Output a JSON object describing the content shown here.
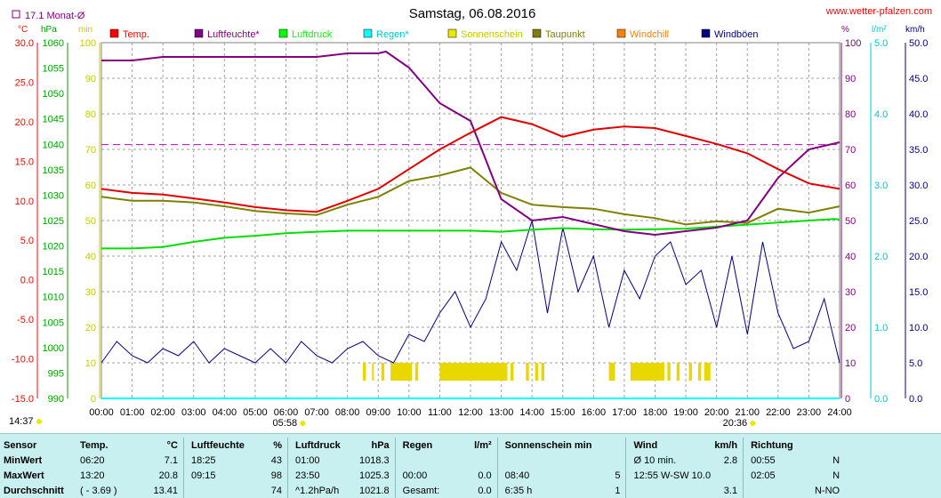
{
  "header": {
    "title": "Samstag, 06.08.2016",
    "site": "www.wetter-pfalzen.com",
    "monat_label": "17.1 Monat-Ø"
  },
  "axes": {
    "temp": {
      "unit": "°C",
      "ticks": [
        "30.0",
        "25.0",
        "20.0",
        "15.0",
        "10.0",
        "5.0",
        "0.0",
        "-5.0",
        "-10.0",
        "-15.0"
      ],
      "color": "#ff0000"
    },
    "pressure": {
      "unit": "hPa",
      "ticks": [
        "1060",
        "1055",
        "1050",
        "1045",
        "1040",
        "1035",
        "1030",
        "1025",
        "1020",
        "1015",
        "1010",
        "1005",
        "1000",
        "995",
        "990"
      ],
      "color": "#00a000"
    },
    "sun": {
      "unit": "min",
      "ticks": [
        "100",
        "90",
        "80",
        "70",
        "60",
        "50",
        "40",
        "30",
        "20",
        "10",
        "0"
      ],
      "color": "#c8c800"
    },
    "humidity": {
      "unit": "%",
      "ticks": [
        "100",
        "90",
        "80",
        "70",
        "60",
        "50",
        "40",
        "30",
        "20",
        "10",
        "0"
      ],
      "color": "#800080"
    },
    "rain": {
      "unit": "l/m²",
      "ticks": [
        "5.0",
        "4.0",
        "3.0",
        "2.0",
        "1.0",
        "0.0"
      ],
      "color": "#00c8c8"
    },
    "wind": {
      "unit": "km/h",
      "ticks": [
        "50.0",
        "45.0",
        "40.0",
        "35.0",
        "30.0",
        "25.0",
        "20.0",
        "15.0",
        "10.0",
        "5.0",
        "0.0"
      ],
      "color": "#000080"
    },
    "x_ticks": [
      "00:00",
      "01:00",
      "02:00",
      "03:00",
      "04:00",
      "05:00",
      "06:00",
      "07:00",
      "08:00",
      "09:00",
      "10:00",
      "11:00",
      "12:00",
      "13:00",
      "14:00",
      "15:00",
      "16:00",
      "17:00",
      "18:00",
      "19:00",
      "20:00",
      "21:00",
      "22:00",
      "23:00",
      "24:00"
    ],
    "sunrise": "05:58",
    "sunset": "20:36",
    "current_time": "14:37"
  },
  "legend": [
    {
      "label": "Temp.",
      "color": "#ff0000"
    },
    {
      "label": "Luftfeuchte*",
      "color": "#800080"
    },
    {
      "label": "Luftdruck",
      "color": "#00ff00"
    },
    {
      "label": "Regen*",
      "color": "#00ffff"
    },
    {
      "label": "Sonnenschein",
      "color": "#e8e800"
    },
    {
      "label": "Taupunkt",
      "color": "#808000"
    },
    {
      "label": "Windchill",
      "color": "#ff8000"
    },
    {
      "label": "Windböen",
      "color": "#000080"
    }
  ],
  "chart_data": {
    "type": "line",
    "title": "Samstag, 06.08.2016",
    "x_range": [
      "00:00",
      "24:00"
    ],
    "monthly_avg_temp": 17.1,
    "series": [
      {
        "name": "Temp.",
        "unit": "°C",
        "x": [
          0,
          1,
          2,
          3,
          4,
          5,
          6,
          7,
          8,
          9,
          10,
          11,
          12,
          13,
          14,
          15,
          16,
          17,
          18,
          19,
          20,
          21,
          22,
          23,
          24
        ],
        "values": [
          11.5,
          11.0,
          10.8,
          10.3,
          9.8,
          9.2,
          8.8,
          8.6,
          10.0,
          11.5,
          14.0,
          16.5,
          18.6,
          20.6,
          19.7,
          18.1,
          19.0,
          19.4,
          19.2,
          18.2,
          17.2,
          16.0,
          14.0,
          12.2,
          11.5
        ]
      },
      {
        "name": "Luftfeuchte*",
        "unit": "%",
        "x": [
          0,
          1,
          2,
          3,
          4,
          5,
          6,
          7,
          8,
          9,
          9.25,
          10,
          11,
          12,
          13,
          14,
          15,
          16,
          17,
          18,
          19,
          20,
          21,
          22,
          23,
          24
        ],
        "values": [
          95,
          95,
          96,
          96,
          96,
          96,
          96,
          96,
          97,
          97,
          97.5,
          93,
          83,
          78,
          56,
          50,
          51,
          49,
          47,
          46,
          47,
          48,
          50,
          62,
          70,
          72
        ]
      },
      {
        "name": "Luftdruck",
        "unit": "hPa",
        "x": [
          0,
          1,
          2,
          3,
          4,
          5,
          6,
          7,
          8,
          9,
          10,
          11,
          12,
          13,
          14,
          15,
          16,
          17,
          18,
          19,
          20,
          21,
          22,
          23,
          23.83,
          24
        ],
        "values": [
          1019.5,
          1019.5,
          1019.8,
          1020.8,
          1021.6,
          1022.0,
          1022.5,
          1022.8,
          1023.0,
          1023.0,
          1023.0,
          1023.0,
          1023.0,
          1022.8,
          1023.2,
          1023.5,
          1023.3,
          1023.2,
          1023.3,
          1023.4,
          1023.8,
          1024.2,
          1024.6,
          1025.0,
          1025.3,
          1025.2
        ]
      },
      {
        "name": "Taupunkt",
        "unit": "°C",
        "x": [
          0,
          1,
          2,
          3,
          4,
          5,
          6,
          7,
          8,
          9,
          10,
          11,
          12,
          13,
          14,
          15,
          16,
          17,
          18,
          19,
          20,
          21,
          22,
          23,
          24
        ],
        "values": [
          10.5,
          10.0,
          10.0,
          9.8,
          9.3,
          8.7,
          8.4,
          8.2,
          9.5,
          10.5,
          12.5,
          13.2,
          14.2,
          11.0,
          9.5,
          9.2,
          9.0,
          8.3,
          7.8,
          7.0,
          7.4,
          7.2,
          9.0,
          8.5,
          9.3
        ]
      },
      {
        "name": "Windböen",
        "unit": "km/h",
        "x": [
          0,
          0.5,
          1,
          1.5,
          2,
          2.5,
          3,
          3.5,
          4,
          4.5,
          5,
          5.5,
          6,
          6.5,
          7,
          7.5,
          8,
          8.5,
          9,
          9.5,
          10,
          10.5,
          11,
          11.5,
          12,
          12.5,
          13,
          13.5,
          14,
          14.5,
          15,
          15.5,
          16,
          16.5,
          17,
          17.5,
          18,
          18.5,
          19,
          19.5,
          20,
          20.5,
          21,
          21.5,
          22,
          22.5,
          23,
          23.5,
          24
        ],
        "values": [
          5,
          8,
          6,
          5,
          7,
          6,
          8,
          5,
          7,
          6,
          5,
          7,
          5,
          8,
          6,
          5,
          7,
          8,
          6,
          5,
          9,
          8,
          12,
          15,
          10,
          14,
          22,
          18,
          25,
          12,
          24,
          15,
          20,
          10,
          18,
          14,
          20,
          22,
          16,
          18,
          10,
          20,
          9,
          22,
          12,
          7,
          8,
          14,
          5
        ]
      },
      {
        "name": "Sonnenschein",
        "unit": "min",
        "intervals": [
          [
            8.5,
            8.6
          ],
          [
            8.8,
            8.85
          ],
          [
            9.1,
            9.2
          ],
          [
            9.4,
            10.1
          ],
          [
            10.2,
            10.3
          ],
          [
            11.0,
            13.2
          ],
          [
            13.3,
            13.4
          ],
          [
            13.8,
            13.9
          ],
          [
            14.1,
            14.2
          ],
          [
            14.3,
            14.4
          ],
          [
            16.5,
            16.7
          ],
          [
            17.2,
            18.3
          ],
          [
            18.4,
            18.5
          ],
          [
            18.7,
            18.8
          ],
          [
            19.1,
            19.2
          ],
          [
            19.4,
            19.5
          ],
          [
            19.6,
            19.8
          ]
        ],
        "value_when_sunny": 5
      },
      {
        "name": "Regen*",
        "unit": "l/m²",
        "x": [
          0,
          24
        ],
        "values": [
          0,
          0
        ]
      }
    ]
  },
  "stats": {
    "headers": {
      "sensor": "Sensor",
      "temp": "Temp.",
      "temp_unit": "°C",
      "hum": "Luftfeuchte",
      "hum_unit": "%",
      "press": "Luftdruck",
      "press_unit": "hPa",
      "rain": "Regen",
      "rain_unit": "l/m²",
      "sun": "Sonnenschein min",
      "wind": "Wind",
      "wind_unit": "km/h",
      "dir": "Richtung"
    },
    "rows": [
      {
        "label": "MinWert",
        "t_time": "06:20",
        "t_val": "7.1",
        "h_time": "18:25",
        "h_val": "43",
        "p_time": "01:00",
        "p_val": "1018.3",
        "r_time": "",
        "r_val": "",
        "s_time": "",
        "s_val": "",
        "w_time": "Ø 10 min.",
        "w_val": "2.8",
        "d_time": "00:55",
        "d_val": "N"
      },
      {
        "label": "MaxWert",
        "t_time": "13:20",
        "t_val": "20.8",
        "h_time": "09:15",
        "h_val": "98",
        "p_time": "23:50",
        "p_val": "1025.3",
        "r_time": "00:00",
        "r_val": "0.0",
        "s_time": "08:40",
        "s_val": "5",
        "w_time": "12:55   W-SW 10.0",
        "w_val": "",
        "d_time": "02:05",
        "d_val": "N"
      },
      {
        "label": "Durchschnitt",
        "t_time": "( - 3.69 )",
        "t_val": "13.41",
        "h_time": "",
        "h_val": "74",
        "p_time": "^1.2hPa/h",
        "p_val": "1021.8",
        "r_time": "Gesamt:",
        "r_val": "0.0",
        "s_time": "6:35 h",
        "s_val": "1",
        "w_time": "",
        "w_val": "3.1",
        "d_time": "",
        "d_val": "N-NO"
      }
    ]
  }
}
